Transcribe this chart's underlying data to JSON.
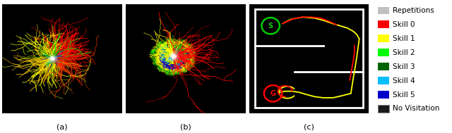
{
  "fig_width": 6.4,
  "fig_height": 1.89,
  "dpi": 100,
  "panels": [
    "(a)",
    "(b)",
    "(c)"
  ],
  "legend_items": [
    {
      "label": "Repetitions",
      "color": "#c0c0c0"
    },
    {
      "label": "Skill 0",
      "color": "#ff0000"
    },
    {
      "label": "Skill 1",
      "color": "#ffff00"
    },
    {
      "label": "Skill 2",
      "color": "#00ff00"
    },
    {
      "label": "Skill 3",
      "color": "#006400"
    },
    {
      "label": "Skill 4",
      "color": "#00bfff"
    },
    {
      "label": "Skill 5",
      "color": "#0000cd"
    },
    {
      "label": "No Visitation",
      "color": "#000000"
    }
  ],
  "fig_bg": "#ffffff",
  "label_fontsize": 8,
  "legend_fontsize": 7.5
}
